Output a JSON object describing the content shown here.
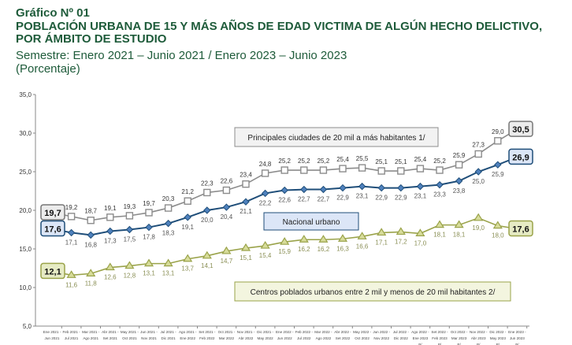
{
  "header": {
    "chart_number": "Gráfico Nº 01",
    "title_line1": "POBLACIÓN URBANA DE 15 Y MÁS AÑOS DE EDAD VICTIMA DE ALGÚN HECHO DELICTIVO,",
    "title_line2": "POR ÁMBITO DE ESTUDIO",
    "subtitle": "Semestre: Enero 2021 – Junio 2021 / Enero 2023 – Junio 2023",
    "unit": "(Porcentaje)"
  },
  "chart_data": {
    "type": "line",
    "ylim": [
      5,
      35
    ],
    "yticks": [
      "5,0",
      "10,0",
      "15,0",
      "20,0",
      "25,0",
      "30,0",
      "35,0"
    ],
    "grid": false,
    "categories": [
      [
        "Ene 2021 -",
        "Jun 2021",
        ""
      ],
      [
        "Feb 2021 -",
        "Jul 2021",
        ""
      ],
      [
        "Mar 2021 -",
        "Ago 2021",
        ""
      ],
      [
        "Abr 2021 -",
        "Set 2021",
        ""
      ],
      [
        "May 2021 -",
        "Oct 2021",
        ""
      ],
      [
        "Jun 2021 -",
        "Nov 2021",
        ""
      ],
      [
        "Jul 2021 -",
        "Dic 2021",
        ""
      ],
      [
        "Ago 2021 -",
        "Ene 2022",
        ""
      ],
      [
        "Set 2021 -",
        "Feb 2022",
        ""
      ],
      [
        "Oct 2021 -",
        "Mar 2022",
        ""
      ],
      [
        "Nov 2021 -",
        "Abr 2022",
        ""
      ],
      [
        "Dic 2021 -",
        "May 2022",
        ""
      ],
      [
        "Ene 2022 -",
        "Jun 2022",
        ""
      ],
      [
        "Feb 2022 -",
        "Jul 2022",
        ""
      ],
      [
        "Mar 2022 -",
        "Ago 2022",
        ""
      ],
      [
        "Abr 2022 -",
        "Set 2022",
        ""
      ],
      [
        "May 2022 -",
        "Oct 2022",
        ""
      ],
      [
        "Jun 2022 -",
        "Nov 2022",
        ""
      ],
      [
        "Jul 2022 -",
        "Dic 2022",
        ""
      ],
      [
        "Ago 2022 -",
        "Ene 2023",
        "P/"
      ],
      [
        "Set 2022 -",
        "Feb 2023",
        "P/"
      ],
      [
        "Oct 2022 -",
        "Mar 2023",
        "P/"
      ],
      [
        "Nov 2022 -",
        "Abr 2023",
        "P/"
      ],
      [
        "Dic 2022 -",
        "May 2023",
        "P/"
      ],
      [
        "Ene 2023 -",
        "Jun 2023",
        "P/"
      ]
    ],
    "series": [
      {
        "name": "Principales ciudades de 20 mil a más habitantes 1/",
        "color": "#8c8c8c",
        "marker": "square",
        "label_pos": "above",
        "values": [
          19.7,
          19.2,
          18.7,
          19.1,
          19.3,
          19.7,
          20.3,
          21.2,
          22.3,
          22.6,
          23.4,
          24.8,
          25.2,
          25.2,
          25.2,
          25.4,
          25.5,
          25.1,
          25.1,
          25.4,
          25.2,
          25.9,
          27.3,
          29.0,
          30.5
        ]
      },
      {
        "name": "Nacional urbano",
        "color": "#1f4e79",
        "marker": "diamond",
        "label_pos": "below",
        "values": [
          17.6,
          17.1,
          16.8,
          17.3,
          17.5,
          17.8,
          18.3,
          19.1,
          20.0,
          20.4,
          21.1,
          22.2,
          22.6,
          22.7,
          22.7,
          22.9,
          23.1,
          22.9,
          22.9,
          23.1,
          23.3,
          23.8,
          25.0,
          25.9,
          26.9
        ]
      },
      {
        "name": "Centros poblados urbanos entre 2 mil  y menos de 20 mil habitantes 2/",
        "color": "#9aa34a",
        "marker": "triangle",
        "label_pos": "below",
        "values": [
          12.1,
          11.6,
          11.8,
          12.6,
          12.8,
          13.1,
          13.1,
          13.7,
          14.1,
          14.7,
          15.1,
          15.4,
          15.9,
          16.2,
          16.2,
          16.3,
          16.6,
          17.1,
          17.2,
          17.0,
          18.1,
          18.1,
          19.0,
          18.0,
          17.6
        ]
      }
    ]
  }
}
